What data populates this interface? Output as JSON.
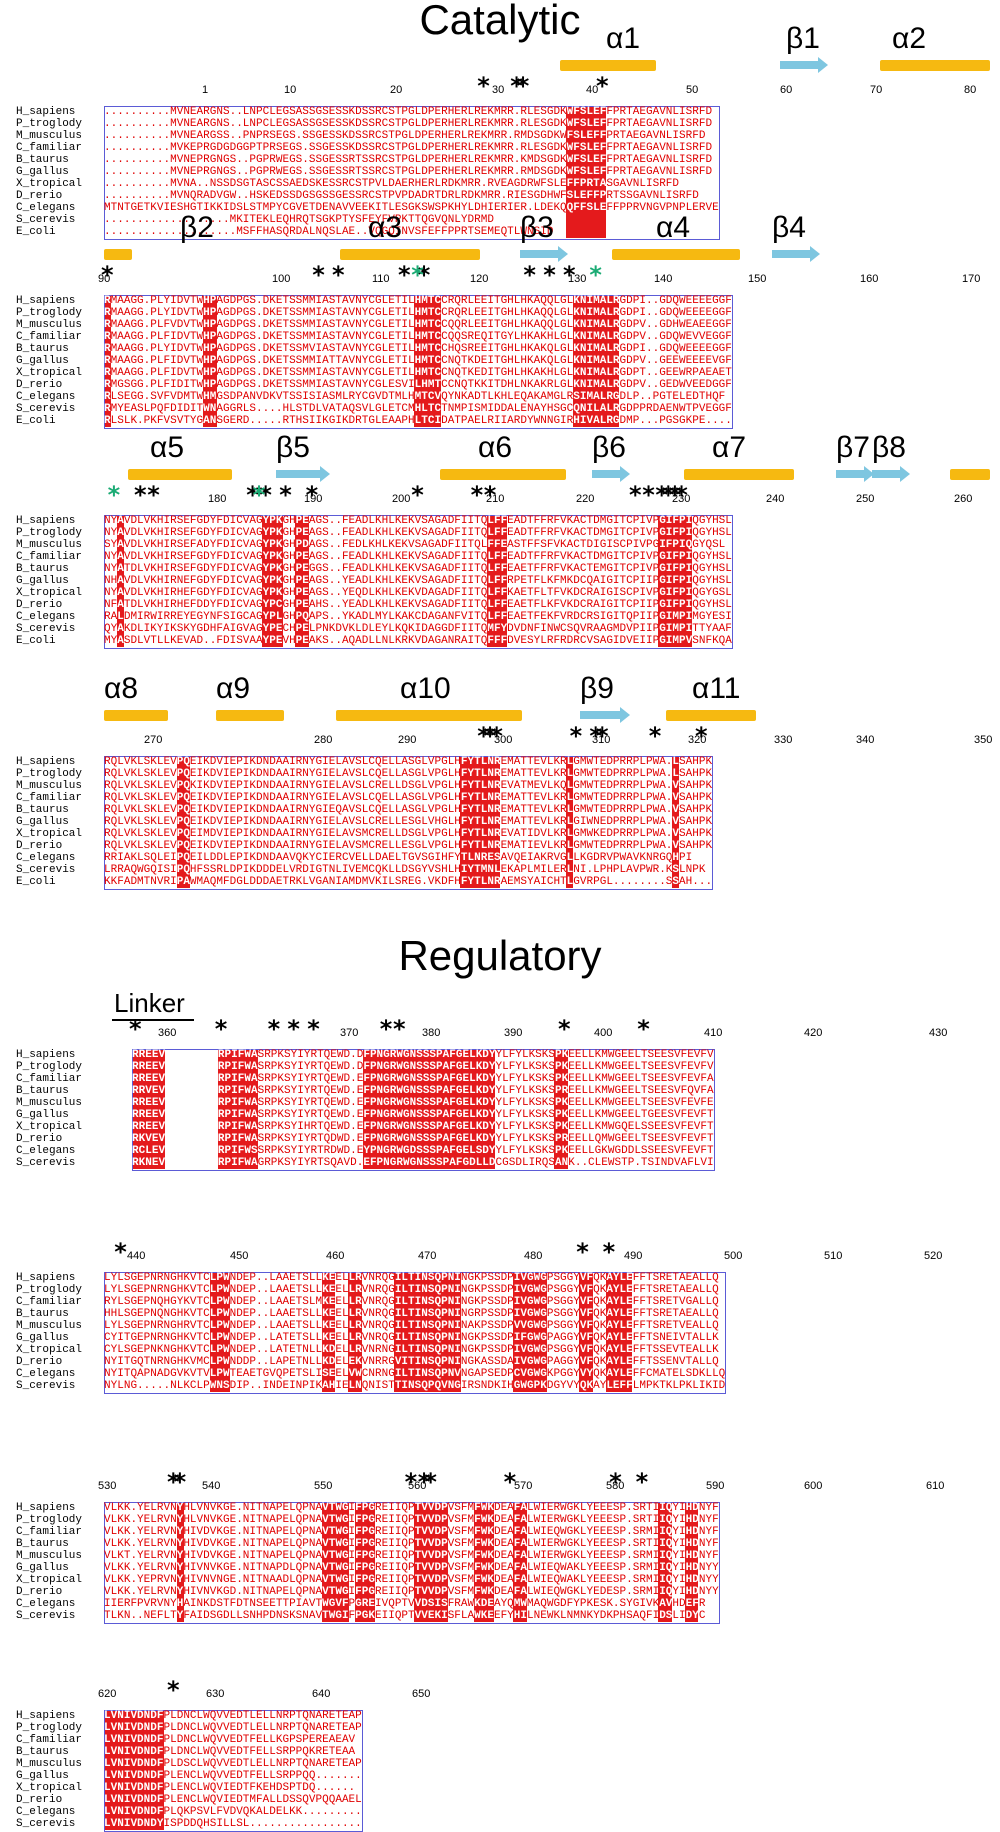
{
  "titles": {
    "catalytic": "Catalytic",
    "regulatory": "Regulatory",
    "linker": "Linker"
  },
  "colors": {
    "identical_bg": "#e41a1c",
    "similar_text": "#e00000",
    "box_border": "#5b5bd6",
    "helix": "#f6b911",
    "strand": "#7ec6e0",
    "key_residue_star": "#000000",
    "alt_residue_star": "#1bab74"
  },
  "catalytic_species": [
    "H_sapiens",
    "P_troglody",
    "M_musculus",
    "C_familiar",
    "B_taurus",
    "G_gallus",
    "X_tropical",
    "D_rerio",
    "C_elegans",
    "S_cerevis",
    "E_coli"
  ],
  "regulatory_species": [
    "H_sapiens",
    "P_troglody",
    "C_familiar",
    "B_taurus",
    "M_musculus",
    "G_gallus",
    "X_tropical",
    "D_rerio",
    "C_elegans",
    "S_cerevis"
  ],
  "blocks": [
    {
      "ruler": [
        "1",
        "10",
        "20",
        "30",
        "40",
        "50",
        "60",
        "70",
        "80"
      ],
      "ss": [
        "α1",
        "β1",
        "α2"
      ],
      "rows": [
        "..........MVNEARGNS..LNPCLEGSASSGSESSKDSSRCSTPGLDPERHERLREKMRR.RLESGDKWFSLEFFPRTAEGAVNLISRFD",
        "..........MVNEARGNS..LNPCLEGSASSGSESSKDSSRCSTPGLDPERHERLREKMRR.RLESGDKWFSLEFFPRTAEGAVNLISRFD",
        "..........MVNEARGSS..PNPRSEGS.SSGESSKDSSRCSTPGLDPERHERLREKMRR.RMDSGDKWFSLEFFPRTAEGAVNLISRFD",
        "..........MVKEPRGDGDGGPTPRSEGS.SSGESSKDSSRCSTPGLDPERHERLREKMRR.RLESGDKWFSLEFFPRTAEGAVNLISRFD",
        "..........MVNEPRGNGS..PGPRWEGS.SSGESSRTSSRCSTPGLDPERHERLREKMRR.KMDSGDKWFSLEFFPRTAEGAVNLISRFD",
        "..........MVNEPRGNGS..PGPRWEGS.SSGESSRTSSRCSTPGLDPERHERLREKMRR.RMDSGDKWFSLEFFPRTAEGAVNLISRFD",
        "..........MVNA..NSSDSGTASCSSAEDSKESSRCSTPVLDAERHERLRDKMRR.RVEAGDRWFSLEFFPRTASGAVNLISRFD",
        "..........MVNQRADVGW..HSKEDSSDGSGSSGESSRCSTPVPDADRTDRLRDKMRR.RIESGDHWFSLEFFPRTSSGAVNLISRFD",
        "MTNTGETKVIESHGTIKKIDSLSTMPYCGVETDENAVVEEKITLESGKSWSPKHYLDHIERIER.LDEKQQFFSLEFFPPRVNGVPNPLERVE",
        "...................MKITEKLEQHRQTSGKPTYSFEYFVPKTTQGVQNLYDRMD",
        "....................MSFFHASQRDALNQSLAE..VQGQINVSFEFFPPRTSEMEQTLWNSID"
      ],
      "identical_cols": [
        70,
        71,
        72,
        73,
        74,
        75
      ],
      "black_star_cols": [
        57,
        62,
        63,
        75
      ],
      "green_star_cols": []
    },
    {
      "ruler": [
        "90",
        "100",
        "110",
        "120",
        "130",
        "140",
        "150",
        "160",
        "170"
      ],
      "ss": [
        "β2",
        "α3",
        "β3",
        "α4",
        "β4"
      ],
      "rows": [
        "RMAAGG.PLYIDVTWHPAGDPGS.DKETSSMMIASTAVNYCGLETILHMTCCRQRLEEITGHLHKAQQLGLKNIMALRGDPI..GDQWEEEEGGF",
        "RMAAGG.PLYIDVTWHPAGDPGS.DKETSSMMIASTAVNYCGLETILHMTCCRQRLEEITGHLHKAQQLGLKNIMALRGDPI..GDQWEEEEGGF",
        "RMAAGG.PLFVDVTWHPAGDPGS.DKETSSMMIASTAVNYCGLETILHMTCCQQRLEEITGHLHKAQQLGLKNIMALRGDPV..GDHWEAEEGGF",
        "RMAAGG.PLFIDVTWHPAGDPGS.DKETSSMMIASTAVNYCGLETILHMTCCQQSREQITGYLHKAKHLGLKNIMALRGDPV..GDQWEVVEGGF",
        "RMAAGG.PLYIDVTWHPAGDPGS.DKETSSMVIASTAVNYCGLETILHMTCCHQSREEITGHLHKAKQLGLKNIMALRGDPI..GDQWEEEEGGF",
        "RMAAGG.PLFIDVTWHPAGDPGS.DKETSSMMIATTAVNYCGLETILHMTCCNQTKDEITGHLHKAKQLGLKNIMALRGDPV..GEEWEEEEVGF",
        "RMAAGG.PLFIDVTWHPAGDPGS.DKETSSMMIASTAVNYCGLETILHMTCCNQTKEDITGHLHKAKHLGLKNIMALRGDPT..GEEWRPAEAET",
        "RMGSGG.PLFIDITWHPAGDPGS.DKETSSMMIASTAVNYCGLESVILHMTCCNQTKKITDHLNKAKRLGLKNIMALRGDPV..GEDWVEEDGGF",
        "RLSEGG.SVFVDMTWHMGSDPANVDKVTSSISIASMLRYCGVDTMLHMTCVQYNKADTLKHLEQAKAMGLRSIMALRGDLP..PGTELEDTHQF",
        "RMYEASLPQFDIDITWNAGGRLS....HLSTDLVATAQSVLGLETCMHLTCTNMPISMIDDALENAYHSGCQNILALRGDPPRDAENWTPVEGGF",
        "RLSLK.PKFVSVTYGANSGERD.....RTHSIIKGIKDRTGLEAAPHLTCIDATPAELRIIARDYWNNGIRHIVALRGDMP...PGSGKPE...."
      ],
      "identical_cols": [
        0,
        15,
        16,
        47,
        48,
        49,
        50,
        71,
        72,
        73,
        74,
        75,
        76,
        77
      ],
      "black_star_cols": [
        0,
        32,
        35,
        45,
        48,
        64,
        67,
        70
      ],
      "green_star_cols": [
        47,
        74
      ]
    },
    {
      "ruler": [
        "180",
        "190",
        "200",
        "210",
        "220",
        "230",
        "240",
        "250",
        "260"
      ],
      "ss": [
        "α5",
        "β5",
        "α6",
        "β6",
        "α7",
        "β7",
        "β8"
      ],
      "rows": [
        "NYAVDLVKHIRSEFGDYFDICVAGYPKGHPEAGS..FEADLKHLKEKVSAGADFIITQLFFEADTFFRFVKACTDMGITCPIVPGIFPIQGYHSL",
        "NYAVDLVKHIRSEFGDYFDICVAGYPKGHPEAGS..FEADLKHLKEKVSAGADFIITQLFFEADTFFRFVKACTDMGITCPIVPGIFPIQGYHSL",
        "SYAVDLVKHIRSEFADYFDICVAGYPKGHPDAGS..FEDLKHLKEKVSAGADFIITQLFFEASTFFSFVKACTDIGISCPIVPGIFPIQGYQSL",
        "NYAVDLVKHIRSEFGDYFDICVAGYPKGHPEAGS..FEADLKHLKEKVSAGADFIITQLFFEADTFFRFVKACTDMGITCPIVPGIFPIQGYHSL",
        "NYATDLVKHIRSEFGDYFDICVAGYPKGHPEGGS..FEADLKHLKEKVSAGADFIITQLFFEAETFFRFVKACTEMGITCPIVPGIFPIQGYHSL",
        "NHAVDLVKHIRNEFGDYFDICVAGYPKGHPEAGS..YEADLKHLKEKVSAGADFIITQLFFRPETFLKFMKDCQAIGITCPIIPGIFPIQGYHSL",
        "NYAVDLVKHIRHEFGDYFDICVAGYPKGHPEAGS..YEQDLKHLKEKVDAGADFIITQLFFKAETFLTFVKDCRAIGISCPIVPGIFPIQGYGSL",
        "NFATDLVKHIRHEFDDYFDICVAGYPCGHPEAHS..YEADLKHLKEKVSAGADFIITQLFFEAETFLKFVKDCRAIGITCPIIPGIFPIQGYHSL",
        "RALDMIRWIRREYEGYNFSIGCAGYPLGHPQAPS..YKADLMYLKAKCDAGANFVITQLFFEAETFEKFVRDCRSIGITQPIIPGIMPIMGYESI",
        "QYAKDLIKYIKSKYGDHFAIGVAGYPECHPELPNKDVKLDLEYLKQKIDAGGDFIITQMFYDVDNFINWCSQVRAAGMDVPIIPGIMPITTYAAF",
        "MYASDLVTLLKEVAD..FDISVAAYPEVHPEAKS..AQADLLNLKRKVDAGANRAITQFFFDVESYLRFRDRCVSAGIDVEIIPGIMPVSNFKQA"
      ],
      "identical_cols": [
        2,
        24,
        25,
        26,
        29,
        30,
        58,
        59,
        60,
        84,
        85,
        86,
        87,
        88
      ],
      "black_star_cols": [
        5,
        7,
        22,
        24,
        27,
        31,
        47,
        56,
        58,
        80,
        82,
        84,
        85,
        86,
        87
      ],
      "green_star_cols": [
        1,
        23
      ]
    },
    {
      "ruler": [
        "270",
        "280",
        "290",
        "300",
        "310",
        "320",
        "330",
        "340",
        "350"
      ],
      "ss": [
        "α8",
        "α9",
        "α10",
        "β9",
        "α11"
      ],
      "rows": [
        "RQLVKLSKLEVPQEIKDVIEPIKDNDAAIRNYGIELAVSLCQELLASGLVPGLHFYTLNREMATTEVLKRLGMWTEDPRRPLPWA.LSAHPK",
        "RQLVKLSKLEVPQEIKDVIEPIKDNDAAIRNYGIELAVSLCQELLASGLVPGLHFYTLNREMATTEVLKRLGMWTEDPRRPLPWA.LSAHPK",
        "RQLVKLSKLEVPQKIKDVIEPIKDNDAAIRNYGIELAVSLCRELLDSGLVPGLHFYTLNREVATMEVLKQLGMWTEDPRRPLPWA.VSAHPK",
        "RQLVKLSKLEVPQEIKDVIEPIKDNDAAIRNYGIELAVSLCQELLASGLVPGLHFYTLNREMATTEVLKRLGMWTEDPRRPLPWA.VSAHPK",
        "RQLVKLSKLEVPQEIKDVIEPIKDNDAAIRNYGIEQAVSLCQELLASGLVPGLHFYTLNREMATTEVLKRLGMWTEDPRRPLPWA.VSAHPK",
        "RQLVKLSKLEVPQEIKDVIEPIKDNDAAIRNYGIELAVSLCRELLESGLVHGLHFYTLNREMATTEVLKRLGIWNEDPRRPLPWA.VSAHPK",
        "RQLVKLSKLEVPQEIMDVIEPIKDNDAAIRNYGIELAVSMCRELLDSGLVPGLHFYTLNREVATIDVLKRLGMWKEDPRRPLPWA.VSAHPK",
        "RQLVKLSKLEVPQEIKDVIEPIKDNDAAIRNYGIELAVSMCRELLESGLVPGLHFYTLNREMATIEVLKRLGMWTEDPRRPLPWA.VSAHPK",
        "RRIAKLSQLEIPQEILDDLEPIKDNDAAVQKYCIERCVELLDAELTGVSGIHFYTLNRESAVQEIAKRVGLLKGDRVPWAVKNRGQHPI",
        "LRRAQWGQISIPQHFSSRLDPIKDDDELVRDIGTNLIVEMCQKLLDSGYVSHLHIYTMNLEKAPLMILERLNI.LPHPLAVPWR.KSLNPK",
        "KKFADMTNVRIPAWMAQMFDGLDDDAETRKLVGANIAMDMVKILSREG.VKDFHFYTLNRAEMSYAICHTLGVRPGL........SSAH..."
      ],
      "identical_cols": [
        11,
        12,
        54,
        55,
        56,
        57,
        58,
        59,
        70,
        86
      ],
      "black_star_cols": [
        57,
        58,
        59,
        71,
        74,
        75,
        83,
        90
      ],
      "green_star_cols": []
    },
    {
      "ruler": [
        "360",
        "370",
        "380",
        "390",
        "400",
        "410",
        "420",
        "430"
      ],
      "ss": [],
      "rows": [
        "RREEV        RPIFWASRPKSYIYRTQEWD.DFPNGRWGNSSSPAFGELKDYYLFYLKSKSPKEELLKMWGEELTSEESVFEVFV",
        "RREEV        RPIFWASRPKSYIYRTQEWD.DFPNGRWGNSSSPAFGELKDYYLFYLKSKSPKEELLKMWGEELTSEESVFEVFV",
        "RREEV        RPIFWASRPKSYIYRTQEWD.EFPNGRWGNSSSPAFGELKDYYLFYLKSKSPKEELLKMWGEELTSEESVFEVFA",
        "RRVEV        RPIFWASRPKSYIYRTQEWD.EFPNGRWGNSSSPAFGELKDYYLFYLKSKSPREELLKMWGEELTSEESVFQVFA",
        "RREEV        RPIFWASRPKSYIYRTQEWD.EFPNGRWGNSSSPAFGELKDYYLFYLKSKSPKEELLKMWGEELTSEESVFEVFE",
        "RREEV        RPIFWASRPKSYIYRTQEWD.EFPNGRWGNSSSPAFGELKDYYLFYLKSKSPKEELLKMWGEELTGEESVFEVFT",
        "RREEV        RPIFWASRPKSYIHRTQEWD.EFPNGRWGNSSSPAFGELKDYYLFYLKSKSPKEELLKMWGQELSSEESVFEVFT",
        "RKVEV        RPIFWASRPKSYIYRTQDWD.EFPNGRWGNSSSPAFGELKDYYLFYLKSKSPREELLQMWGEELTSEESVFEVFT",
        "RCLEV        RPIFWSSRPKSYIYRTRDWD.EYPNGRWGDSSSPAFGELSDYYLFYLKSKSPKEELLGKWGDDLSSEESVFEVFT",
        "RKNEV        RPIFWAGRPKSYIYRTSQAVD.EFPNGRWGNSSSPAFGDLLDCGSDLIRQSANK..CLEWSTP.TSINDVAFLVI"
      ],
      "identical_cols": [
        0,
        1,
        2,
        3,
        4,
        13,
        14,
        15,
        16,
        17,
        18,
        35,
        36,
        37,
        38,
        39,
        40,
        41,
        42,
        43,
        44,
        45,
        46,
        47,
        48,
        49,
        50,
        51,
        52,
        53,
        54,
        64,
        65
      ],
      "black_star_cols": [
        0,
        13,
        21,
        24,
        27,
        38,
        40,
        65,
        77
      ],
      "green_star_cols": []
    },
    {
      "ruler": [
        "440",
        "450",
        "460",
        "470",
        "480",
        "490",
        "500",
        "510",
        "520"
      ],
      "ss": [],
      "rows": [
        "LYLSGEPNRNGHKVTCLPWNDEP..LAAETSLLKEELLRVNRQGILTINSQPNINGKPSSDPIVGWGPSGGYVFQKAYLEFFTSRETAEALLQ",
        "LYLSGEPNRNGHKVTCLPWNDEP..LAAETSLLKEELLRVNRQGILTINSQPNINGKPSSDPIVGWGPSGGYVFQKAYLEFFTSRETAEALLQ",
        "RYLSGEPNQHGYKVTCLPWNDEP..LAAETSLMKEELLRVNRQGILTINSQPNINGKPSSDPIVGWGPSGGYVFQKAYLEFFTSRETVGALLQ",
        "HHLSGEPNQNGHKVTCLPWNDEP..LAAETSLLKEELLRVNRQGILTINSQPNINGRPSSDPIVGWGPSGGYVFQKAYLEFFTSRETAEALLQ",
        "LYLSGEPNRNGHRVTCLPWNDEP..LAAETSLLKEELLRVNRQGILTINSQPNINAKPSSDPVVGWGPSGGYVFQKAYLEFFTSRETVEALLQ",
        "CYITGEPNRNGHKVTCLPWNDEP..LATETSLLKEELLRVNRQGILTINSQPNINGKPSSDPIFGWGPAGGYVFQKAYLEFFTSNEIVTALLK",
        "CYLSGEPNKNGHKVTCLPWNDEP..LATETNLLKDELLRVNRNGILTINSQPNINGKPSSDPIVGWGPSGGYVFQKAYLEFFTSSEVTEALLK",
        "NYITGQTNRNGHKVMCLPWNDDP..LAPETNLLKDELEKVNRRGVITINSQPNINGKASSDAIVGWGPAGGYVFQKAYLEFFTSSENVTALLQ",
        "NYITQAPNADGVKVTVLPWTEAETGVQPETSLISEELVWCNRNGILTINSQPNVNGAPSEDPCVGWGKPGGYVYQKAYLEFFCMATELSDKLLQ",
        "NYLNG.....NLKCLPWNSDIP..INDEINPIKAHIELNQNISTTINSQPQVNGIRSNDKIHGWGPKDGYVYQKAYLEFFLMPKTKLPKLIKID"
      ],
      "identical_cols": [
        16,
        17,
        18,
        33,
        34,
        37,
        38,
        44,
        45,
        46,
        47,
        48,
        49,
        50,
        51,
        52,
        53,
        62,
        63,
        64,
        65,
        66,
        72,
        73,
        76,
        77,
        78,
        79
      ],
      "black_star_cols": [
        2,
        72,
        76
      ],
      "green_star_cols": []
    },
    {
      "ruler": [
        "530",
        "540",
        "550",
        "560",
        "570",
        "580",
        "590",
        "600",
        "610"
      ],
      "ss": [],
      "rows": [
        "VLKK.YELRVNYHLVNVKGE.NITNAPELQPNAVTWGIFPGREIIQPTVVDPVSFMFWKDEAFALWIERWGKLYEEESP.SRTIIQYIHDNYF",
        "VLKK.YELRVNYHLVNVKGE.NITNAPELQPNAVTWGIFPGREIIQPTVVDPVSFMFWKDEAFALWIERWGKLYEEESP.SRTIIQYIHDNYF",
        "VLKK.YELRVNYHIVDVKGE.NITNAPELQPNAVTWGIFPGREIIQPTVVDPVSFMFWKDEAFALWIEQWGKLYEEESP.SRMIIQYIHDNYF",
        "VLKK.YELRVNYHIVDVKGE.NITNAPELQPNAVTWGIFPGREIIQPTVVDPVSFMFWKDEAFALWIERWGKLYEEESP.SRTIIQYIHDNYF",
        "VLKT.YELRVNYHIVDVKGE.NITNAPELQPNAVTWGIFPGREIIQPTVVDPVSFMFWKDEAFALWIERWGKLYEEESP.SRMIIQYIHDNYF",
        "VLKK.YELRVNYHIVNVKGE.NITNAPDLQPNAVTWGIFPGREIIQPTVVDPVSFMFWKDEAFALWIEQWAKLYEEESP.SRMIIQYIHDNYY",
        "VLKK.YEPRVNYHIVNVNGE.NITNAADLQPNAVTWGIFPGREIIQPTVVDPVSFMFWKDEAFALWIEQWAKLYEEESP.SRMIIQYIHDNYY",
        "VLKK.YELRVNYHIVNVKGD.NITNAPELQPNAVTWGIFPGREIIQPTVVDPVSFMFWKDEAFALWIEQWGKLYEDESP.SRMIIQYIHDNYY",
        "IIERFPVRVNYHAINKDSTFDTNSEETTPIAVTWGVFPGREIVQPTVVDSISFRAWKDEAYQMWMAQWGDFYPKESK.SYGIVKAVHDEFR",
        "TLKN..NEFLTYFAIDSGDLLSNHPDNSKSNAVTWGIFPGKEIIQPTVVEKISFLAWKEEFYHILNEWKLNMNKYDKPHSAQFIDSLIDYC"
      ],
      "identical_cols": [
        11,
        33,
        34,
        35,
        36,
        38,
        39,
        40,
        47,
        48,
        49,
        50,
        51,
        56,
        57,
        58,
        62,
        63,
        84,
        85,
        88,
        89
      ],
      "black_star_cols": [
        10,
        11,
        46,
        48,
        49,
        61,
        77,
        81
      ],
      "green_star_cols": []
    },
    {
      "ruler": [
        "620",
        "630",
        "640",
        "650"
      ],
      "ss": [],
      "rows": [
        "LVNIVDNDFPLDNCLWQVVEDTLELLNRPTQNARETEAP",
        "LVNIVDNDFPLDNCLWQVVEDTLELLNRPTQNARETEAP",
        "LVNIVDNDFPLDNCLWQVVEDTFELLKGPSPEREAEAV",
        "LVNIVDNDFPLDNCLWQVVEDTFELLSRPPQKRETEAA",
        "LVNIVDNDFPLDSCLWQVVEDTLELLNRPTQNARETEAP",
        "LVNIVDNDFPLENCLWQVVEDTFELLSRPPQQ.......",
        "LVNIVDNDFPLENCLWQVIEDTFKEHDSPTDQ......",
        "LVNIVDNDFPLENCLWQVIEDTMFALLDSSQVPQQAAEL",
        "LVNIVDNDFPLQKPSVLFVDVQKALDELKK.........",
        "LVNIVDNDYISPDDQHSILLSL................."
      ],
      "identical_cols": [
        0,
        1,
        2,
        3,
        4,
        5,
        6,
        7,
        8
      ],
      "black_star_cols": [
        10
      ],
      "green_star_cols": []
    }
  ]
}
